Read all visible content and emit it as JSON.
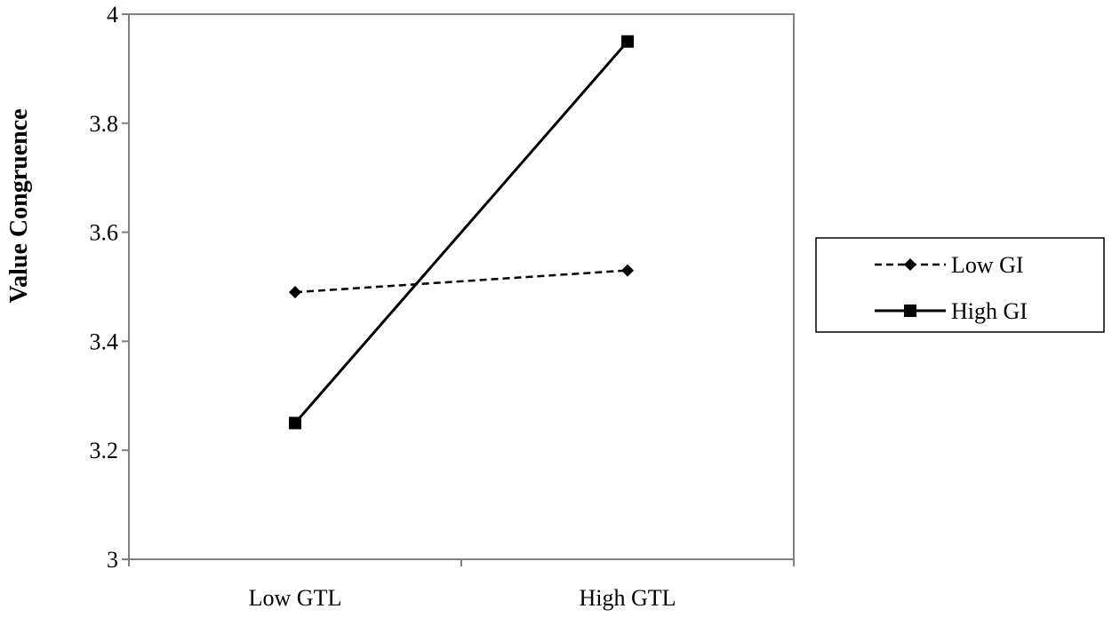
{
  "chart_data": {
    "type": "line",
    "categories": [
      "Low GTL",
      "High GTL"
    ],
    "series": [
      {
        "name": "Low GI",
        "values": [
          3.49,
          3.53
        ],
        "line_style": "dashed",
        "marker": "diamond"
      },
      {
        "name": "High GI",
        "values": [
          3.25,
          3.95
        ],
        "line_style": "solid",
        "marker": "square"
      }
    ],
    "ylabel": "Value Congruence",
    "xlabel": "",
    "ylim": [
      3,
      4
    ],
    "yticks": [
      "3",
      "3.2",
      "3.4",
      "3.6",
      "3.8",
      "4"
    ],
    "grid": false,
    "legend_position": "right",
    "colors": {
      "line": "#000000",
      "frame": "#808080",
      "background": "#ffffff"
    }
  }
}
